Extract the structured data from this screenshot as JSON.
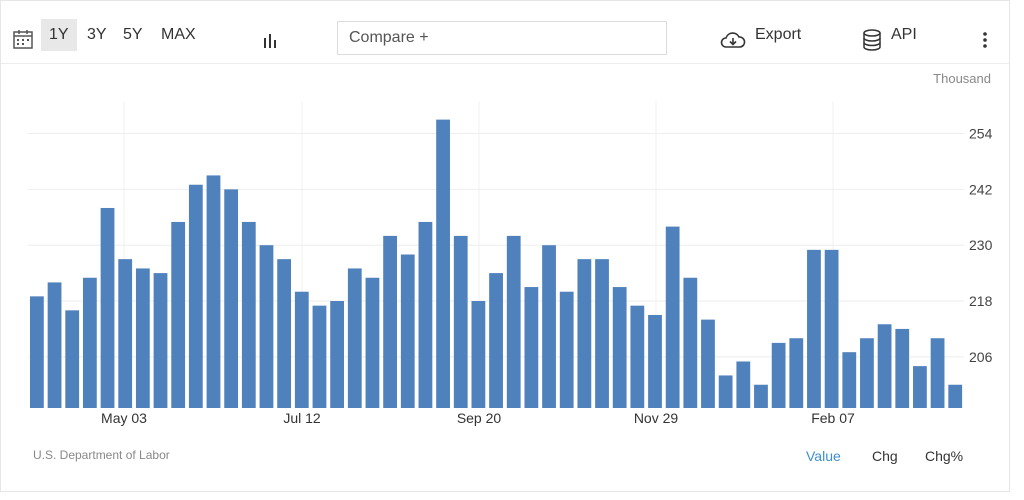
{
  "toolbar": {
    "ranges": [
      "1Y",
      "3Y",
      "5Y",
      "MAX"
    ],
    "active_range": "1Y",
    "compare_placeholder": "Compare +",
    "export_label": "Export",
    "api_label": "API"
  },
  "chart_data": {
    "type": "bar",
    "unit": "Thousand",
    "source": "U.S. Department of Labor",
    "x_ticks": [
      "May 03",
      "Jul 12",
      "Sep 20",
      "Nov 29",
      "Feb 07"
    ],
    "y_ticks": [
      206,
      218,
      230,
      242,
      254
    ],
    "ylim": [
      195,
      261
    ],
    "color": "#4f81bd",
    "values": [
      219,
      222,
      216,
      223,
      238,
      227,
      225,
      224,
      235,
      243,
      245,
      242,
      235,
      230,
      227,
      220,
      217,
      218,
      225,
      223,
      232,
      228,
      235,
      257,
      232,
      218,
      224,
      232,
      221,
      230,
      220,
      227,
      227,
      221,
      217,
      215,
      234,
      223,
      214,
      202,
      205,
      200,
      209,
      210,
      229,
      229,
      207,
      210,
      213,
      212,
      204,
      210,
      200
    ]
  },
  "footer": {
    "tabs": [
      "Value",
      "Chg",
      "Chg%"
    ],
    "active_tab": "Value"
  }
}
